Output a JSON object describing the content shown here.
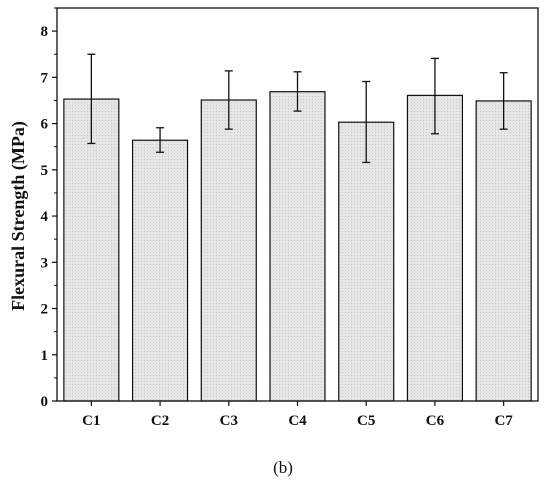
{
  "chart_data": {
    "type": "bar",
    "ylabel": "Flexural Strength (MPa)",
    "xlabel": "",
    "caption": "(b)",
    "categories": [
      "C1",
      "C2",
      "C3",
      "C4",
      "C5",
      "C6",
      "C7"
    ],
    "values": [
      6.53,
      5.64,
      6.51,
      6.69,
      6.03,
      6.61,
      6.49
    ],
    "error_upper": [
      7.5,
      5.91,
      7.14,
      7.12,
      6.91,
      7.41,
      7.1
    ],
    "error_lower": [
      5.57,
      5.38,
      5.88,
      6.27,
      5.16,
      5.78,
      5.88
    ],
    "ylim": [
      0,
      8.5
    ],
    "yticks": [
      0,
      1,
      2,
      3,
      4,
      5,
      6,
      7,
      8
    ],
    "grid": false,
    "legend": "none",
    "colors": {
      "bar_fill": "#e6e6e6",
      "bar_pattern_dot": "#c8c8c8",
      "bar_stroke": "#111111",
      "error_bar": "#111111",
      "axis": "#111111"
    }
  }
}
